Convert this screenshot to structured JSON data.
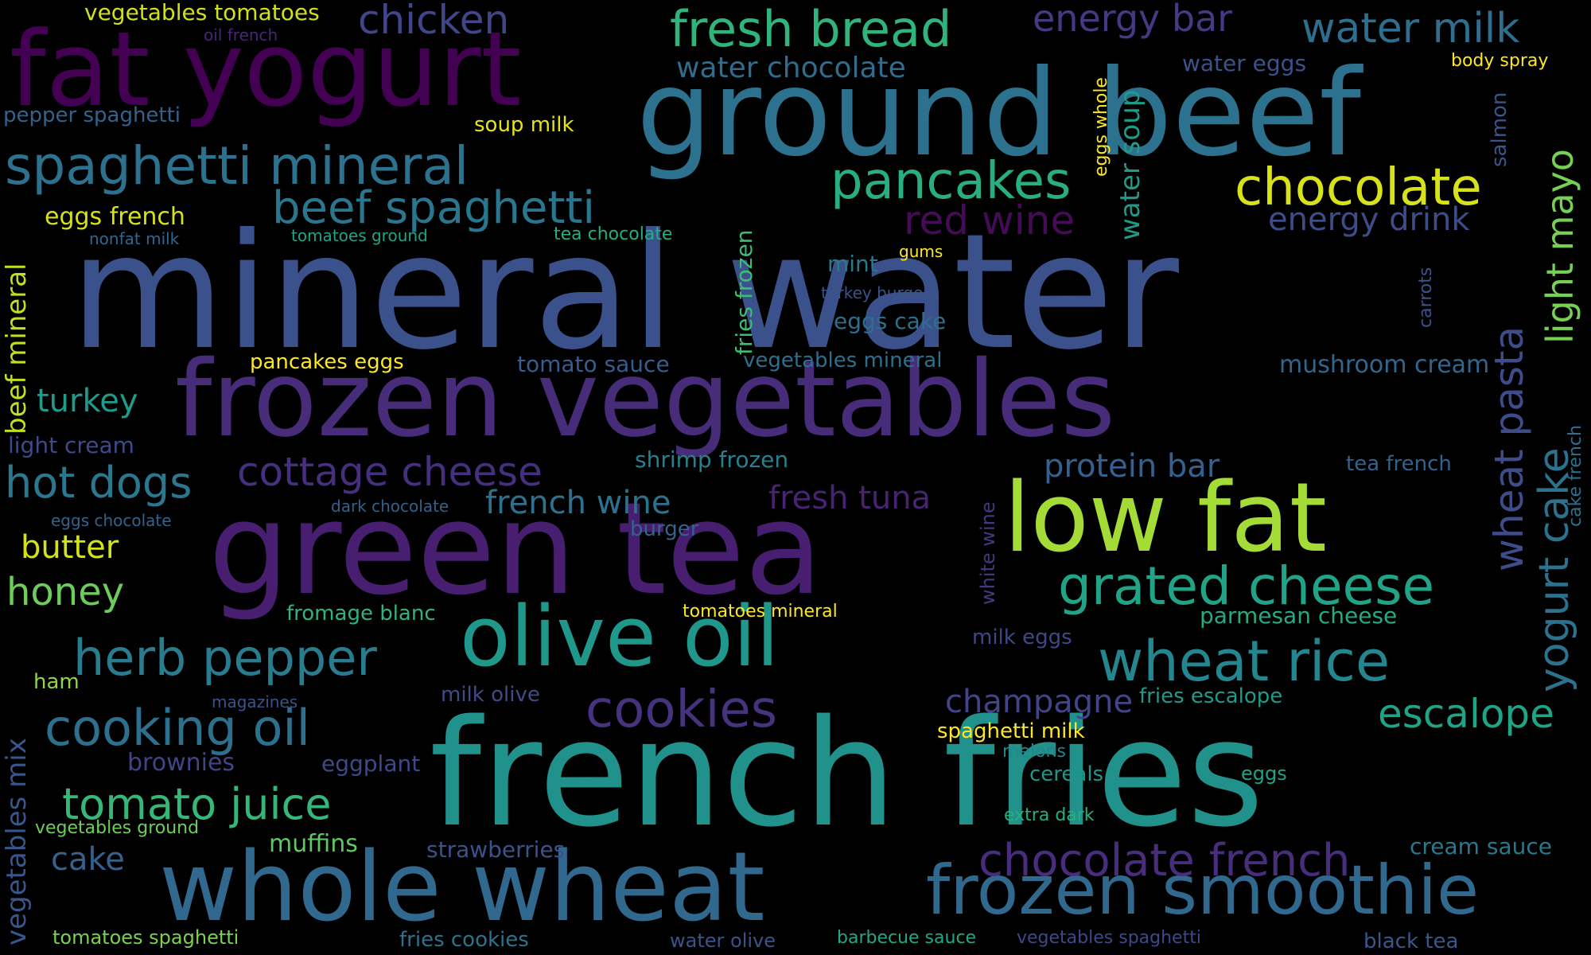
{
  "words": [
    {
      "text": "mineral water",
      "color": "#3b518b"
    },
    {
      "text": "french fries",
      "color": "#21918c"
    },
    {
      "text": "ground beef",
      "color": "#2c718e"
    },
    {
      "text": "green tea",
      "color": "#481f70"
    },
    {
      "text": "frozen vegetables",
      "color": "#472c7a"
    },
    {
      "text": "fat yogurt",
      "color": "#440154"
    },
    {
      "text": "whole wheat",
      "color": "#31688e"
    },
    {
      "text": "low fat",
      "color": "#a5db36"
    },
    {
      "text": "olive oil",
      "color": "#1f988b"
    },
    {
      "text": "frozen smoothie",
      "color": "#31688e"
    },
    {
      "text": "spaghetti mineral",
      "color": "#2c728e"
    },
    {
      "text": "grated cheese",
      "color": "#20a386"
    },
    {
      "text": "wheat rice",
      "color": "#24868e"
    },
    {
      "text": "chocolate",
      "color": "#d8e219"
    },
    {
      "text": "pancakes",
      "color": "#28ae80"
    },
    {
      "text": "fresh bread",
      "color": "#2fb47c"
    },
    {
      "text": "cooking oil",
      "color": "#2d708e"
    },
    {
      "text": "herb pepper",
      "color": "#287c8e"
    },
    {
      "text": "beef spaghetti",
      "color": "#2a768e"
    },
    {
      "text": "cookies",
      "color": "#46327e"
    },
    {
      "text": "chocolate french",
      "color": "#472d7b"
    },
    {
      "text": "tomato juice",
      "color": "#35b779"
    },
    {
      "text": "cottage cheese",
      "color": "#46307e"
    },
    {
      "text": "hot dogs",
      "color": "#2a788e"
    },
    {
      "text": "escalope",
      "color": "#20a486"
    },
    {
      "text": "water milk",
      "color": "#2e6e8e"
    },
    {
      "text": "red wine",
      "color": "#450b57"
    },
    {
      "text": "chicken",
      "color": "#404688"
    },
    {
      "text": "energy bar",
      "color": "#443a83"
    },
    {
      "text": "energy drink",
      "color": "#3e4c8a"
    },
    {
      "text": "protein bar",
      "color": "#34618d"
    },
    {
      "text": "honey",
      "color": "#6ccd5a"
    },
    {
      "text": "cake",
      "color": "#34618d"
    },
    {
      "text": "turkey",
      "color": "#1e9b8a"
    },
    {
      "text": "butter",
      "color": "#d2e21b"
    },
    {
      "text": "champagne",
      "color": "#414487"
    },
    {
      "text": "fresh tuna",
      "color": "#482374"
    },
    {
      "text": "french wine",
      "color": "#2c718e"
    },
    {
      "text": "water chocolate",
      "color": "#2f6c8e"
    },
    {
      "text": "muffins",
      "color": "#5ec962"
    },
    {
      "text": "mushroom cream",
      "color": "#31668e"
    },
    {
      "text": "tomato sauce",
      "color": "#365d8d"
    },
    {
      "text": "light cream",
      "color": "#3e4a89"
    },
    {
      "text": "shrimp frozen",
      "color": "#27808e"
    },
    {
      "text": "brownies",
      "color": "#404588"
    },
    {
      "text": "eggplant",
      "color": "#3e4989"
    },
    {
      "text": "strawberries",
      "color": "#3b528b"
    },
    {
      "text": "parmesan cheese",
      "color": "#25ab82"
    },
    {
      "text": "fromage blanc",
      "color": "#2fb47c"
    },
    {
      "text": "eggs french",
      "color": "#d8e219"
    },
    {
      "text": "pancakes eggs",
      "color": "#fde725"
    },
    {
      "text": "soup milk",
      "color": "#e5e419"
    },
    {
      "text": "tea chocolate",
      "color": "#27ad81"
    },
    {
      "text": "tomatoes mineral",
      "color": "#fde725"
    },
    {
      "text": "vegetables tomatoes",
      "color": "#d0e11c"
    },
    {
      "text": "vegetables mineral",
      "color": "#2e6f8e"
    },
    {
      "text": "eggs cake",
      "color": "#2e6e8e"
    },
    {
      "text": "mint",
      "color": "#2a788e"
    },
    {
      "text": "water eggs",
      "color": "#3b528b"
    },
    {
      "text": "body spray",
      "color": "#fde725"
    },
    {
      "text": "spaghetti milk",
      "color": "#fde725"
    },
    {
      "text": "milk eggs",
      "color": "#3f4788"
    },
    {
      "text": "milk olive",
      "color": "#3e4c8a"
    },
    {
      "text": "fries escalope",
      "color": "#1f9a8a"
    },
    {
      "text": "cereals",
      "color": "#1f978b"
    },
    {
      "text": "melons",
      "color": "#25858e"
    },
    {
      "text": "eggs",
      "color": "#20a386"
    },
    {
      "text": "extra dark",
      "color": "#29af7f"
    },
    {
      "text": "cream sauce",
      "color": "#2a788e"
    },
    {
      "text": "vegetables ground",
      "color": "#6ece58"
    },
    {
      "text": "tomatoes spaghetti",
      "color": "#7ad151"
    },
    {
      "text": "fries cookies",
      "color": "#2c728e"
    },
    {
      "text": "water olive",
      "color": "#3b528b"
    },
    {
      "text": "barbecue sauce",
      "color": "#22a884"
    },
    {
      "text": "vegetables spaghetti",
      "color": "#3e4989"
    },
    {
      "text": "black tea",
      "color": "#38588c"
    },
    {
      "text": "pepper spaghetti",
      "color": "#33638d"
    },
    {
      "text": "oil french",
      "color": "#482576"
    },
    {
      "text": "nonfat milk",
      "color": "#31668e"
    },
    {
      "text": "tomatoes ground",
      "color": "#20a386"
    },
    {
      "text": "gums",
      "color": "#fde725"
    },
    {
      "text": "turkey burgers",
      "color": "#3b528b"
    },
    {
      "text": "dark chocolate",
      "color": "#34608d"
    },
    {
      "text": "eggs chocolate",
      "color": "#33638d"
    },
    {
      "text": "burger",
      "color": "#33638d"
    },
    {
      "text": "tea french",
      "color": "#33628d"
    },
    {
      "text": "magazines",
      "color": "#3b528b"
    },
    {
      "text": "ham",
      "color": "#90d743"
    },
    {
      "text": "water soup",
      "color": "#1e9c89"
    },
    {
      "text": "eggs whole",
      "color": "#fde725"
    },
    {
      "text": "fries frozen",
      "color": "#3dbc74"
    },
    {
      "text": "beef mineral",
      "color": "#c2df23"
    },
    {
      "text": "vegetables mix",
      "color": "#39568c"
    },
    {
      "text": "light mayo",
      "color": "#75d054"
    },
    {
      "text": "wheat pasta",
      "color": "#3e4c8a"
    },
    {
      "text": "yogurt cake",
      "color": "#2c728e"
    },
    {
      "text": "white wine",
      "color": "#453781"
    },
    {
      "text": "carrots",
      "color": "#3b528b"
    },
    {
      "text": "salmon",
      "color": "#3a548c"
    },
    {
      "text": "cake french",
      "color": "#2e6f8e"
    }
  ]
}
